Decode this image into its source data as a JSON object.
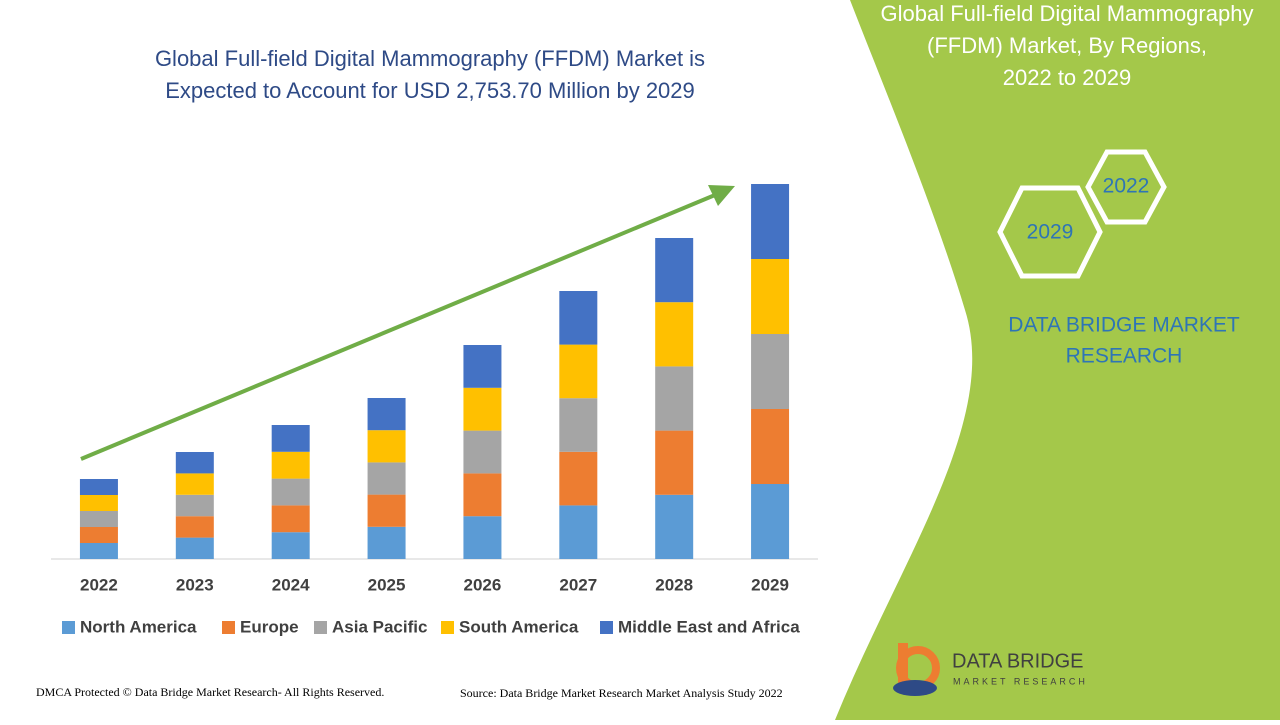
{
  "chart_data": {
    "type": "stacked-bar",
    "title": [
      "Global Full-field Digital Mammography (FFDM) Market is",
      "Expected to Account for USD 2,753.70 Million by 2029"
    ],
    "categories": [
      "2022",
      "2023",
      "2024",
      "2025",
      "2026",
      "2027",
      "2028",
      "2029"
    ],
    "series": [
      {
        "name": "North America",
        "color": "#5b9bd5",
        "values": [
          16,
          21.4,
          26.8,
          32.2,
          42.8,
          53.6,
          64.2,
          75
        ]
      },
      {
        "name": "Europe",
        "color": "#ed7d31",
        "values": [
          16,
          21.4,
          26.8,
          32.2,
          42.8,
          53.6,
          64.2,
          75
        ]
      },
      {
        "name": "Asia Pacific",
        "color": "#a5a5a5",
        "values": [
          16,
          21.4,
          26.8,
          32.2,
          42.8,
          53.6,
          64.2,
          75
        ]
      },
      {
        "name": "South America",
        "color": "#ffc000",
        "values": [
          16,
          21.4,
          26.8,
          32.2,
          42.8,
          53.6,
          64.2,
          75
        ]
      },
      {
        "name": "Middle East and Africa",
        "color": "#4472c4",
        "values": [
          16,
          21.4,
          26.8,
          32.2,
          42.8,
          53.6,
          64.2,
          75
        ]
      }
    ],
    "ylim": [
      0,
      400
    ]
  },
  "panel": {
    "title": [
      "Global Full-field Digital Mammography",
      "(FFDM) Market, By Regions,",
      "2022 to 2029"
    ],
    "hex_labels": [
      "2022",
      "2029"
    ],
    "brand": [
      "DATA BRIDGE MARKET",
      "RESEARCH"
    ],
    "logo": [
      "DATA BRIDGE",
      "MARKET RESEARCH"
    ]
  },
  "footer": {
    "left": "DMCA Protected © Data Bridge Market Research- All Rights Reserved.",
    "right": "Source: Data Bridge Market Research Market Analysis Study 2022"
  }
}
